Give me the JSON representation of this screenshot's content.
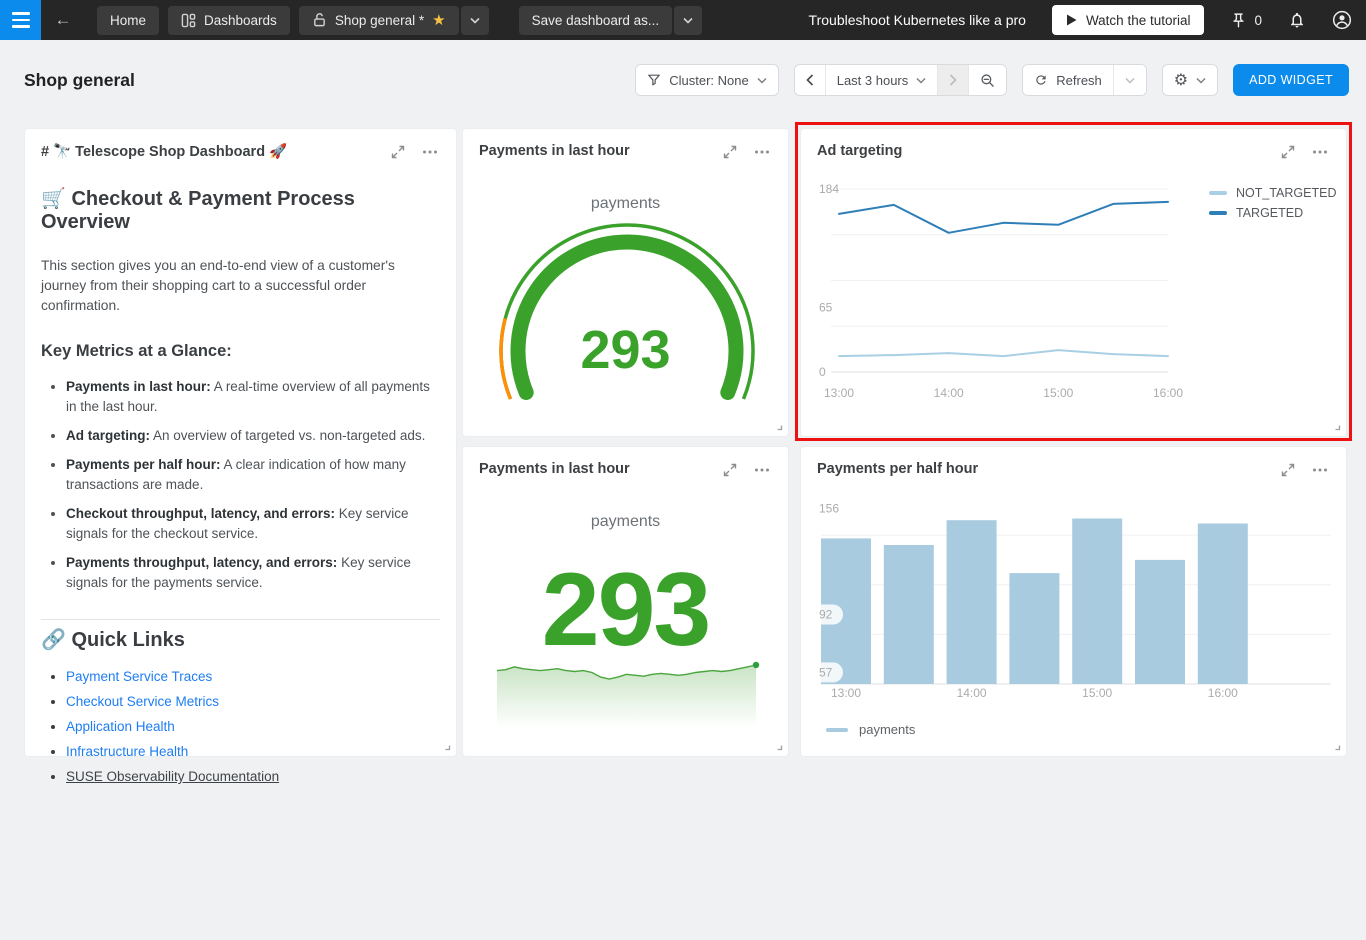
{
  "icons": {
    "star": "★",
    "gear": "⚙",
    "back_arrow": "←"
  },
  "navbar": {
    "home_label": "Home",
    "dashboards_label": "Dashboards",
    "dashboard_tab_label": "Shop general *",
    "save_as_label": "Save dashboard as...",
    "promo_text": "Troubleshoot Kubernetes like a pro",
    "watch_tutorial_label": "Watch the tutorial",
    "pin_count": "0"
  },
  "page_header": {
    "title": "Shop general",
    "cluster_filter_label": "Cluster: None",
    "time_range_label": "Last 3 hours",
    "refresh_label": "Refresh",
    "add_widget_label": "ADD WIDGET"
  },
  "markdown_widget": {
    "title": "# 🔭 Telescope Shop Dashboard 🚀",
    "heading": "🛒 Checkout & Payment Process Overview",
    "intro": "This section gives you an end-to-end view of a customer's journey from their shopping cart to a successful order confirmation.",
    "metrics_heading": "Key Metrics at a Glance:",
    "metrics": [
      {
        "label": "Payments in last hour:",
        "text": " A real-time overview of all payments in the last hour."
      },
      {
        "label": "Ad targeting:",
        "text": " An overview of targeted vs. non-targeted ads."
      },
      {
        "label": "Payments per half hour:",
        "text": " A clear indication of how many transactions are made."
      },
      {
        "label": "Checkout throughput, latency, and errors:",
        "text": " Key service signals for the checkout service."
      },
      {
        "label": "Payments throughput, latency, and errors:",
        "text": " Key service signals for the payments service."
      }
    ],
    "links_heading": "🔗 Quick Links",
    "links": [
      {
        "label": "Payment Service Traces",
        "external": false
      },
      {
        "label": "Checkout Service Metrics",
        "external": false
      },
      {
        "label": "Application Health",
        "external": false
      },
      {
        "label": "Infrastructure Health",
        "external": false
      },
      {
        "label": "SUSE Observability Documentation",
        "external": true
      }
    ]
  },
  "highlight": {
    "highlighted_widget": "Ad targeting",
    "color": "#ee1111"
  },
  "chart_data": [
    {
      "id": "ad_targeting",
      "type": "line",
      "title": "Ad targeting",
      "x": [
        "13:00",
        "13:30",
        "14:00",
        "14:30",
        "15:00",
        "15:30",
        "16:00"
      ],
      "series": [
        {
          "name": "NOT_TARGETED",
          "color": "#a9cfe5",
          "values": [
            16,
            17,
            19,
            16,
            22,
            18,
            16
          ]
        },
        {
          "name": "TARGETED",
          "color": "#2e7eb8",
          "values": [
            159,
            168,
            140,
            150,
            148,
            169,
            171
          ]
        }
      ],
      "ylim": [
        0,
        184
      ],
      "ytick_labels": [
        184,
        65,
        0
      ],
      "xtick_labels": [
        "13:00",
        "14:00",
        "15:00",
        "16:00"
      ],
      "legend_position": "right",
      "grid": true
    },
    {
      "id": "payments_per_half_hour",
      "type": "bar",
      "title": "Payments per half hour",
      "categories": [
        "13:00",
        "13:30",
        "14:00",
        "14:30",
        "15:00",
        "15:30",
        "16:00"
      ],
      "values": [
        138,
        134,
        149,
        117,
        150,
        125,
        147
      ],
      "series_name": "payments",
      "color": "#a9cbdf",
      "ylim": [
        50,
        160
      ],
      "ytick_labels": [
        156,
        92,
        57
      ],
      "gridline_values": [
        140,
        110,
        80
      ],
      "xtick_labels": [
        "13:00",
        "14:00",
        "15:00",
        "16:00"
      ],
      "legend_position": "bottom"
    },
    {
      "id": "payments_gauge",
      "type": "gauge",
      "title": "Payments in last hour",
      "metric": "payments",
      "value": 293,
      "ok_color": "#3aa22b",
      "warn_color": "#ff8f07"
    },
    {
      "id": "payments_last_hour_trend",
      "type": "area",
      "title": "Payments in last hour",
      "metric": "payments",
      "value": 293,
      "color": "#4aa53c",
      "dot_color": "#2e9e3c",
      "values": [
        290,
        291,
        294,
        292,
        291,
        290,
        291,
        292,
        290,
        289,
        290,
        288,
        283,
        281,
        283,
        286,
        285,
        284,
        286,
        287,
        286,
        285,
        286,
        288,
        289,
        290,
        289,
        290,
        292,
        294,
        296
      ]
    }
  ]
}
